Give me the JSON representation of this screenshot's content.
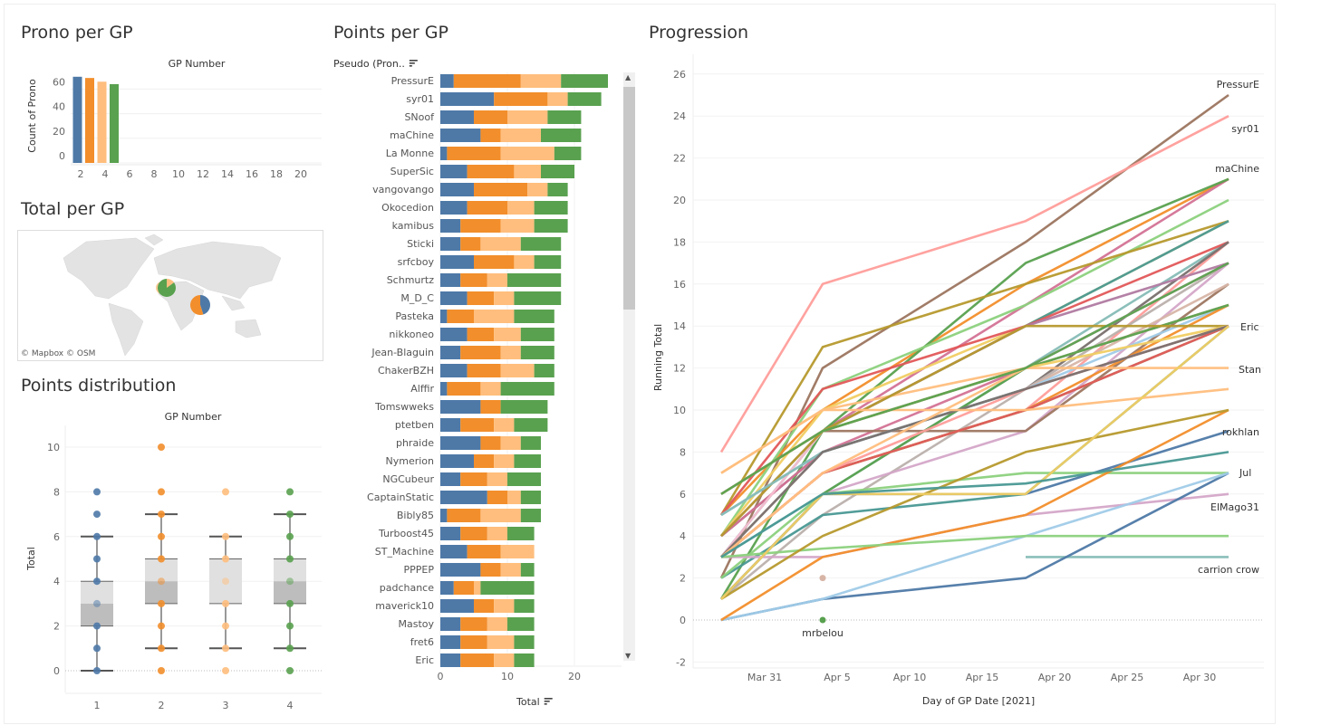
{
  "titles": {
    "prono": "Prono per GP",
    "total": "Total per GP",
    "distribution": "Points distribution",
    "points": "Points per GP",
    "progression": "Progression"
  },
  "colors": {
    "gp1": "#4e79a7",
    "gp2": "#f28e2b",
    "gp3": "#ffbe7d",
    "gp4": "#59a14f"
  },
  "chart_data": [
    {
      "type": "bar",
      "id": "prono",
      "title": "GP Number",
      "ylabel": "Count of Prono",
      "x": [
        1,
        2,
        3,
        4
      ],
      "values": [
        70,
        69,
        66,
        64
      ],
      "xticks": [
        2,
        4,
        6,
        8,
        10,
        12,
        14,
        16,
        18,
        20
      ],
      "yticks": [
        0,
        20,
        40,
        60
      ],
      "xlim": [
        0.5,
        21.5
      ],
      "ylim": [
        0,
        75
      ],
      "grid": true
    },
    {
      "type": "map",
      "id": "total-map",
      "attribution": [
        "© Mapbox",
        "© OSM"
      ],
      "pies": [
        {
          "location": "western-europe",
          "slices": [
            {
              "gp": "gp3",
              "value": 0.15
            },
            {
              "gp": "gp4",
              "value": 0.85
            }
          ]
        },
        {
          "location": "middle-east",
          "slices": [
            {
              "gp": "gp1",
              "value": 0.45
            },
            {
              "gp": "gp2",
              "value": 0.55
            }
          ]
        }
      ]
    },
    {
      "type": "boxplot",
      "id": "distribution",
      "title": "GP Number",
      "ylabel": "Total",
      "categories": [
        "1",
        "2",
        "3",
        "4"
      ],
      "yticks": [
        0,
        2,
        4,
        6,
        8,
        10
      ],
      "ylim": [
        -1,
        11
      ],
      "boxes": [
        {
          "gp": "gp1",
          "whisker_low": 0,
          "q1": 2,
          "median": 3,
          "q3": 4,
          "whisker_high": 6,
          "points": [
            0,
            1,
            2,
            3,
            4,
            5,
            6,
            7,
            8
          ]
        },
        {
          "gp": "gp2",
          "whisker_low": 1,
          "q1": 3,
          "median": 4,
          "q3": 5,
          "whisker_high": 7,
          "points": [
            0,
            1,
            2,
            3,
            4,
            5,
            6,
            7,
            8,
            10
          ]
        },
        {
          "gp": "gp3",
          "whisker_low": 1,
          "q1": 3,
          "median": 3,
          "q3": 5,
          "whisker_high": 6,
          "points": [
            0,
            1,
            2,
            3,
            4,
            5,
            6,
            8
          ]
        },
        {
          "gp": "gp4",
          "whisker_low": 1,
          "q1": 3,
          "median": 4,
          "q3": 5,
          "whisker_high": 7,
          "points": [
            0,
            1,
            2,
            3,
            4,
            5,
            6,
            7,
            8
          ]
        }
      ]
    },
    {
      "type": "stacked-bar",
      "id": "points",
      "row_header": "Pseudo (Pron..",
      "xlabel": "Total",
      "xticks": [
        0,
        10,
        20
      ],
      "xlim": [
        0,
        27
      ],
      "rows": [
        {
          "name": "PressurE",
          "values": [
            2,
            10,
            6,
            7
          ]
        },
        {
          "name": "syr01",
          "values": [
            8,
            8,
            3,
            5
          ]
        },
        {
          "name": "SNoof",
          "values": [
            5,
            5,
            6,
            5
          ]
        },
        {
          "name": "maChine",
          "values": [
            6,
            3,
            6,
            6
          ]
        },
        {
          "name": "La Monne",
          "values": [
            1,
            8,
            8,
            4
          ]
        },
        {
          "name": "SuperSic",
          "values": [
            4,
            7,
            4,
            5
          ]
        },
        {
          "name": "vangovango",
          "values": [
            5,
            8,
            3,
            3
          ]
        },
        {
          "name": "Okocedion",
          "values": [
            4,
            6,
            4,
            5
          ]
        },
        {
          "name": "kamibus",
          "values": [
            3,
            6,
            5,
            5
          ]
        },
        {
          "name": "Sticki",
          "values": [
            3,
            3,
            6,
            6
          ]
        },
        {
          "name": "srfcboy",
          "values": [
            5,
            6,
            3,
            4
          ]
        },
        {
          "name": "Schmurtz",
          "values": [
            3,
            4,
            3,
            8
          ]
        },
        {
          "name": "M_D_C",
          "values": [
            4,
            4,
            3,
            7
          ]
        },
        {
          "name": "Pasteka",
          "values": [
            1,
            4,
            6,
            6
          ]
        },
        {
          "name": "nikkoneo",
          "values": [
            4,
            4,
            4,
            5
          ]
        },
        {
          "name": "Jean-Blaguin",
          "values": [
            3,
            6,
            3,
            5
          ]
        },
        {
          "name": "ChakerBZH",
          "values": [
            4,
            5,
            5,
            3
          ]
        },
        {
          "name": "Alffir",
          "values": [
            1,
            5,
            3,
            8
          ]
        },
        {
          "name": "Tomswweks",
          "values": [
            6,
            3,
            0,
            7
          ]
        },
        {
          "name": "ptetben",
          "values": [
            3,
            5,
            3,
            5
          ]
        },
        {
          "name": "phraide",
          "values": [
            6,
            3,
            3,
            3
          ]
        },
        {
          "name": "Nymerion",
          "values": [
            5,
            3,
            3,
            4
          ]
        },
        {
          "name": "NGCubeur",
          "values": [
            3,
            4,
            3,
            5
          ]
        },
        {
          "name": "CaptainStatic",
          "values": [
            7,
            3,
            2,
            3
          ]
        },
        {
          "name": "Bibly85",
          "values": [
            1,
            5,
            6,
            3
          ]
        },
        {
          "name": "Turboost45",
          "values": [
            3,
            4,
            3,
            4
          ]
        },
        {
          "name": "ST_Machine",
          "values": [
            4,
            5,
            5,
            0
          ]
        },
        {
          "name": "PPPEP",
          "values": [
            6,
            3,
            3,
            2
          ]
        },
        {
          "name": "padchance",
          "values": [
            2,
            3,
            1,
            8
          ]
        },
        {
          "name": "maverick10",
          "values": [
            5,
            3,
            3,
            3
          ]
        },
        {
          "name": "Mastoy",
          "values": [
            3,
            4,
            3,
            4
          ]
        },
        {
          "name": "fret6",
          "values": [
            3,
            4,
            4,
            3
          ]
        },
        {
          "name": "Eric",
          "values": [
            3,
            5,
            3,
            3
          ]
        }
      ]
    },
    {
      "type": "line",
      "id": "progression",
      "xlabel": "Day of GP Date [2021]",
      "ylabel": "Running Total",
      "x": [
        "2021-03-28",
        "2021-04-04",
        "2021-04-18",
        "2021-05-02"
      ],
      "xticks": [
        {
          "label": "Mar 31",
          "date": "2021-03-31"
        },
        {
          "label": "Apr 5",
          "date": "2021-04-05"
        },
        {
          "label": "Apr 10",
          "date": "2021-04-10"
        },
        {
          "label": "Apr 15",
          "date": "2021-04-15"
        },
        {
          "label": "Apr 20",
          "date": "2021-04-20"
        },
        {
          "label": "Apr 25",
          "date": "2021-04-25"
        },
        {
          "label": "Apr 30",
          "date": "2021-04-30"
        }
      ],
      "yticks": [
        -2,
        0,
        2,
        4,
        6,
        8,
        10,
        12,
        14,
        16,
        18,
        20,
        22,
        24,
        26
      ],
      "ylim": [
        -3,
        27
      ],
      "palette": [
        "#4e79a7",
        "#a0cbe8",
        "#f28e2b",
        "#ffbe7d",
        "#59a14f",
        "#8cd17d",
        "#b6992d",
        "#f1ce63",
        "#499894",
        "#86bcb6",
        "#e15759",
        "#ff9d9a",
        "#79706e",
        "#bab0ac",
        "#d37295",
        "#fabfd2",
        "#b07aa1",
        "#d4a6c8",
        "#9d7660",
        "#d7b5a6"
      ],
      "labeled": [
        "PressurE",
        "syr01",
        "maChine",
        "Eric",
        "Stan",
        "rokhlan",
        "Jul",
        "ElMago31",
        "carrion crow",
        "mrbelou"
      ],
      "series_colors": {
        "PressurE": "#9c755f",
        "syr01": "#ff9d9a",
        "maChine": "#d37295",
        "Eric": "#79706e",
        "Stan": "#ffbe7d",
        "rokhlan": "#4e79a7",
        "Jul": "#8cd17d",
        "ElMago31": "#d4a6c8",
        "carrion crow": "#86bcb6",
        "mrbelou": "#59a14f"
      },
      "extra_series": [
        {
          "name": "Stan",
          "running": [
            3,
            7,
            12,
            12
          ]
        },
        {
          "name": "rokhlan",
          "running": [
            1,
            6,
            6,
            9
          ]
        },
        {
          "name": "Jul",
          "running": [
            2,
            6,
            7,
            7
          ]
        },
        {
          "name": "ElMago31",
          "running": [
            3,
            3,
            5,
            6
          ]
        },
        {
          "name": "carrion crow",
          "running": [
            null,
            null,
            3,
            3
          ]
        },
        {
          "name": "mrbelou",
          "running": [
            null,
            0,
            null,
            null
          ]
        },
        {
          "name": "",
          "running": [
            null,
            2,
            null,
            null
          ]
        },
        {
          "name": "",
          "running": [
            0,
            1,
            2,
            7
          ]
        },
        {
          "name": "",
          "running": [
            0,
            1,
            4,
            7
          ]
        },
        {
          "name": "",
          "running": [
            0,
            3,
            5,
            10
          ]
        },
        {
          "name": "",
          "running": [
            7,
            10,
            10,
            11
          ]
        },
        {
          "name": "",
          "running": [
            6,
            9,
            12,
            17
          ]
        },
        {
          "name": "",
          "running": [
            3,
            3.4,
            4,
            4
          ]
        },
        {
          "name": "",
          "running": [
            1,
            4,
            8,
            10
          ]
        },
        {
          "name": "",
          "running": [
            1,
            6,
            6,
            14
          ]
        },
        {
          "name": "",
          "running": [
            3,
            6,
            6.5,
            8
          ]
        }
      ]
    }
  ]
}
